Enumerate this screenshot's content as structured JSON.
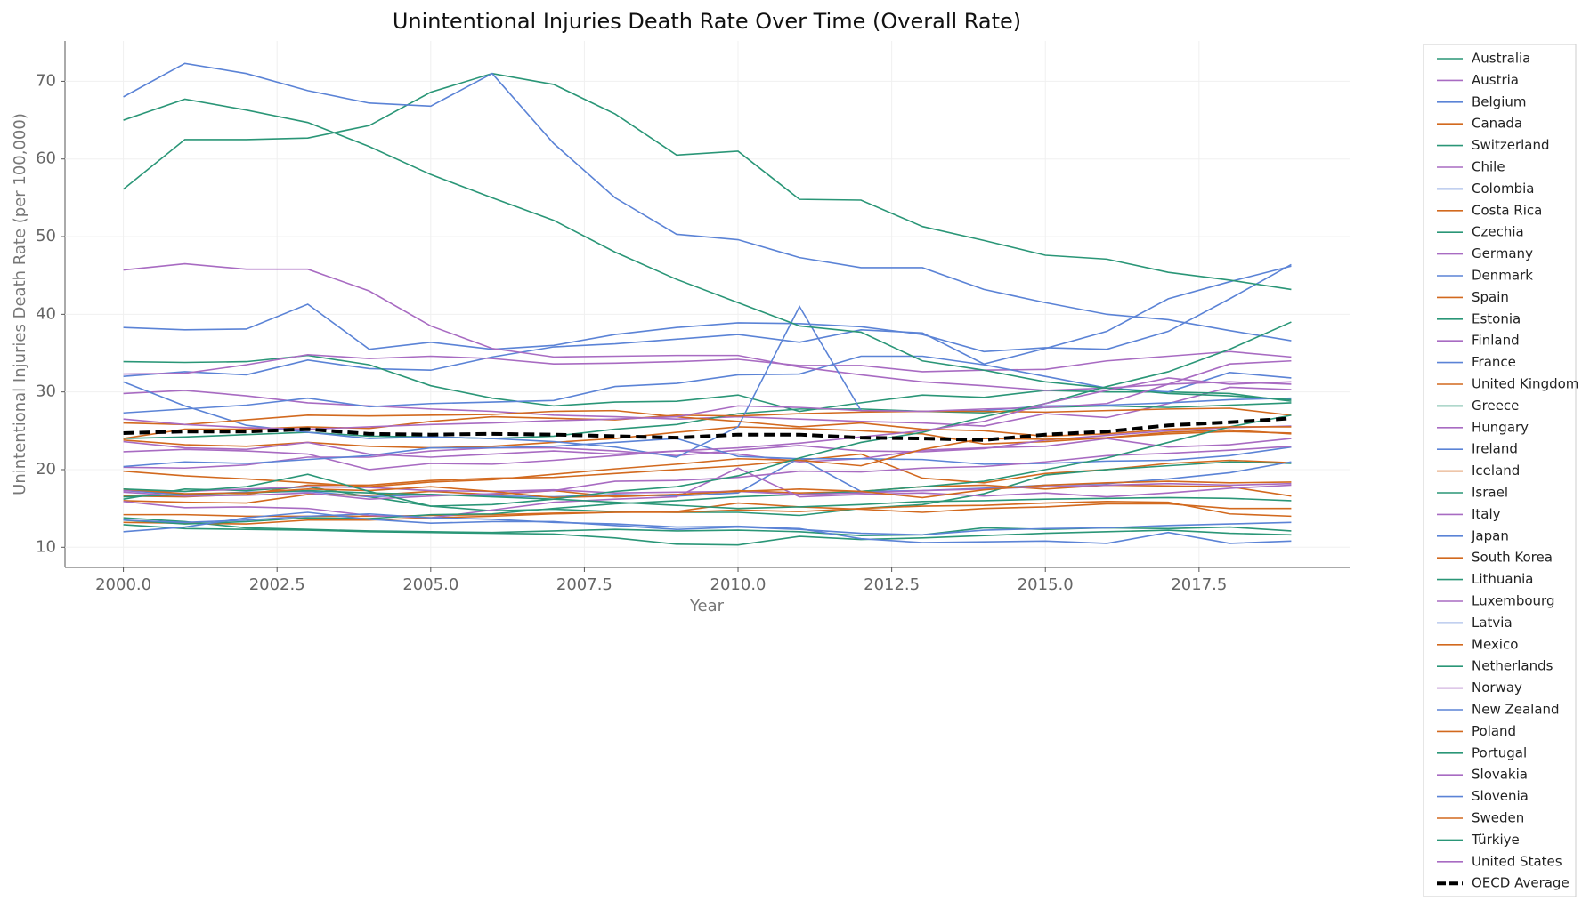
{
  "chart_data": {
    "type": "line",
    "title": "Unintentional Injuries Death Rate Over Time (Overall Rate)",
    "x_label": "Year",
    "y_label": "Unintentional Injuries Death Rate (per 100,000)",
    "x": [
      2000,
      2001,
      2002,
      2003,
      2004,
      2005,
      2006,
      2007,
      2008,
      2009,
      2010,
      2011,
      2012,
      2013,
      2014,
      2015,
      2016,
      2017,
      2018,
      2019
    ],
    "xlim": [
      1999.05,
      2019.95
    ],
    "ylim": [
      7.4,
      75.2
    ],
    "xticks": [
      {
        "value": 2000,
        "label": "2000.0"
      },
      {
        "value": 2002.5,
        "label": "2002.5"
      },
      {
        "value": 2005,
        "label": "2005.0"
      },
      {
        "value": 2007.5,
        "label": "2007.5"
      },
      {
        "value": 2010,
        "label": "2010.0"
      },
      {
        "value": 2012.5,
        "label": "2012.5"
      },
      {
        "value": 2015,
        "label": "2015.0"
      },
      {
        "value": 2017.5,
        "label": "2017.5"
      }
    ],
    "yticks": [
      10,
      20,
      30,
      40,
      50,
      60,
      70
    ],
    "grid": true,
    "legend": "outside-right",
    "series": [
      {
        "name": "Australia",
        "color": "#2a9677",
        "values": [
          13.8,
          13.3,
          12.5,
          12.3,
          12.1,
          12.0,
          11.9,
          12.1,
          12.3,
          12.1,
          12.2,
          12.0,
          11.5,
          11.6,
          12.5,
          12.3,
          12.5,
          12.4,
          12.6,
          12.1
        ]
      },
      {
        "name": "Austria",
        "color": "#a86bc2",
        "values": [
          29.8,
          30.2,
          29.5,
          28.6,
          28.2,
          27.8,
          27.5,
          27.0,
          26.8,
          26.5,
          26.8,
          26.5,
          26.2,
          26.0,
          25.6,
          27.2,
          26.7,
          28.5,
          30.6,
          30.3
        ]
      },
      {
        "name": "Belgium",
        "color": "#5b83d6",
        "values": [
          32.0,
          32.6,
          32.2,
          34.1,
          33.0,
          32.8,
          34.5,
          35.8,
          36.2,
          36.8,
          37.4,
          36.4,
          38.0,
          37.6,
          33.6,
          35.6,
          37.8,
          42.0,
          44.2,
          46.2
        ]
      },
      {
        "name": "Canada",
        "color": "#d2691e",
        "values": [
          16.6,
          16.5,
          16.8,
          18.0,
          18.0,
          18.6,
          18.9,
          19.0,
          19.5,
          20.0,
          20.5,
          21.2,
          22.0,
          18.9,
          18.3,
          19.5,
          20.0,
          20.8,
          21.2,
          20.9
        ]
      },
      {
        "name": "Switzerland",
        "color": "#2a9677",
        "values": [
          16.2,
          17.5,
          17.3,
          17.8,
          16.5,
          15.3,
          14.7,
          14.9,
          14.6,
          14.5,
          14.5,
          14.1,
          15.0,
          15.5,
          16.9,
          19.3,
          20.0,
          20.5,
          21.0,
          20.8
        ]
      },
      {
        "name": "Chile",
        "color": "#a86bc2",
        "values": [
          22.3,
          22.6,
          22.4,
          22.0,
          20.0,
          20.8,
          20.7,
          21.2,
          21.8,
          22.4,
          22.0,
          21.0,
          21.4,
          22.5,
          22.8,
          23.0,
          24.0,
          22.9,
          23.2,
          24.0
        ]
      },
      {
        "name": "Colombia",
        "color": "#5b83d6",
        "values": [
          38.3,
          38.0,
          38.1,
          41.3,
          35.5,
          36.4,
          35.5,
          36.0,
          37.4,
          38.3,
          38.9,
          38.8,
          38.4,
          37.4,
          35.2,
          35.7,
          35.5,
          37.8,
          42.0,
          46.4
        ]
      },
      {
        "name": "Costa Rica",
        "color": "#d2691e",
        "values": [
          23.8,
          23.2,
          23.0,
          23.5,
          23.0,
          22.8,
          23.0,
          23.5,
          24.0,
          24.8,
          25.5,
          25.3,
          25.0,
          24.6,
          23.3,
          23.6,
          24.1,
          24.6,
          24.9,
          24.7
        ]
      },
      {
        "name": "Czechia",
        "color": "#2a9677",
        "values": [
          33.9,
          33.8,
          33.9,
          34.7,
          33.5,
          30.8,
          29.2,
          28.2,
          28.7,
          28.8,
          29.6,
          27.5,
          28.6,
          29.6,
          29.3,
          30.2,
          30.0,
          30.0,
          29.8,
          28.8
        ]
      },
      {
        "name": "Germany",
        "color": "#a86bc2",
        "values": [
          20.3,
          20.2,
          20.6,
          21.6,
          21.6,
          22.4,
          22.8,
          22.8,
          22.4,
          21.8,
          22.5,
          23.1,
          22.4,
          22.3,
          22.7,
          23.8,
          24.4,
          25.0,
          25.4,
          25.6
        ]
      },
      {
        "name": "Denmark",
        "color": "#5b83d6",
        "values": [
          20.4,
          21.0,
          20.8,
          21.3,
          21.8,
          22.8,
          22.8,
          23.0,
          23.5,
          24.0,
          21.7,
          21.4,
          21.4,
          21.3,
          20.7,
          20.8,
          21.1,
          21.2,
          21.8,
          22.9
        ]
      },
      {
        "name": "Spain",
        "color": "#d2691e",
        "values": [
          14.2,
          14.2,
          14.0,
          14.0,
          14.0,
          14.1,
          14.2,
          14.4,
          14.5,
          14.6,
          15.7,
          15.2,
          14.9,
          14.5,
          15.0,
          15.2,
          15.6,
          15.6,
          15.0,
          15.0
        ]
      },
      {
        "name": "Estonia",
        "color": "#2a9677",
        "values": [
          56.1,
          62.5,
          62.5,
          62.7,
          64.3,
          68.6,
          71.0,
          69.6,
          65.8,
          60.5,
          61.0,
          54.8,
          54.7,
          51.3,
          49.5,
          47.6,
          47.1,
          45.4,
          44.4,
          43.2
        ]
      },
      {
        "name": "Finland",
        "color": "#a86bc2",
        "values": [
          32.3,
          32.4,
          33.5,
          34.8,
          34.3,
          34.6,
          34.3,
          33.6,
          33.7,
          33.9,
          34.2,
          33.4,
          33.4,
          32.6,
          32.8,
          32.9,
          34.0,
          34.6,
          35.2,
          34.5
        ]
      },
      {
        "name": "France",
        "color": "#5b83d6",
        "values": [
          27.3,
          27.8,
          28.3,
          29.2,
          28.1,
          28.5,
          28.7,
          28.9,
          30.7,
          31.1,
          32.2,
          32.3,
          34.6,
          34.6,
          33.5,
          32.0,
          30.5,
          30.0,
          32.5,
          31.8
        ]
      },
      {
        "name": "United Kingdom",
        "color": "#d2691e",
        "values": [
          13.2,
          13.1,
          13.0,
          13.5,
          13.5,
          13.8,
          14.0,
          14.3,
          14.5,
          14.5,
          14.8,
          14.6,
          15.0,
          15.3,
          15.4,
          15.7,
          15.9,
          15.8,
          14.3,
          14.0
        ]
      },
      {
        "name": "Greece",
        "color": "#2a9677",
        "values": [
          24.0,
          24.2,
          24.5,
          24.8,
          24.3,
          24.2,
          24.0,
          24.3,
          25.2,
          25.8,
          27.2,
          27.8,
          27.8,
          27.5,
          27.3,
          28.0,
          28.2,
          28.0,
          28.3,
          28.6
        ]
      },
      {
        "name": "Hungary",
        "color": "#a86bc2",
        "values": [
          45.7,
          46.5,
          45.8,
          45.8,
          43.0,
          38.5,
          35.6,
          34.5,
          34.6,
          34.7,
          34.7,
          33.2,
          32.2,
          31.3,
          30.8,
          30.2,
          30.5,
          31.0,
          31.3,
          31.0
        ]
      },
      {
        "name": "Ireland",
        "color": "#5b83d6",
        "values": [
          17.3,
          16.8,
          17.1,
          17.2,
          16.5,
          16.8,
          16.6,
          16.5,
          16.8,
          16.6,
          17.0,
          21.5,
          17.2,
          17.3,
          17.6,
          18.0,
          18.2,
          18.8,
          19.6,
          21.0
        ]
      },
      {
        "name": "Iceland",
        "color": "#d2691e",
        "values": [
          16.0,
          15.8,
          15.7,
          16.8,
          16.7,
          17.2,
          16.8,
          17.3,
          16.5,
          16.8,
          17.3,
          17.0,
          17.2,
          17.8,
          18.0,
          17.5,
          18.0,
          17.9,
          17.8,
          16.6
        ]
      },
      {
        "name": "Israel",
        "color": "#2a9677",
        "values": [
          12.9,
          12.4,
          12.3,
          12.2,
          12.0,
          11.9,
          11.8,
          11.7,
          11.2,
          10.4,
          10.3,
          11.4,
          11.0,
          11.2,
          11.5,
          11.8,
          12.0,
          12.2,
          11.8,
          11.6
        ]
      },
      {
        "name": "Italy",
        "color": "#a86bc2",
        "values": [
          17.1,
          16.6,
          16.7,
          17.0,
          16.2,
          16.6,
          16.9,
          17.3,
          18.5,
          18.6,
          19.0,
          19.8,
          19.7,
          20.2,
          20.4,
          21.0,
          21.8,
          22.1,
          22.5,
          23.0
        ]
      },
      {
        "name": "Japan",
        "color": "#5b83d6",
        "values": [
          31.3,
          28.2,
          25.7,
          24.8,
          24.0,
          24.2,
          24.0,
          23.6,
          22.9,
          21.6,
          25.5,
          41.0,
          27.6,
          27.5,
          27.6,
          28.2,
          28.3,
          28.6,
          29.0,
          29.2
        ]
      },
      {
        "name": "South Korea",
        "color": "#d2691e",
        "values": [
          19.8,
          19.2,
          18.8,
          18.3,
          17.8,
          18.4,
          18.7,
          19.4,
          20.1,
          20.7,
          21.4,
          21.2,
          20.5,
          22.6,
          24.0,
          23.9,
          24.1,
          24.8,
          25.1,
          24.6
        ]
      },
      {
        "name": "Lithuania",
        "color": "#2a9677",
        "values": [
          65.0,
          67.7,
          66.3,
          64.7,
          61.6,
          58.0,
          55.0,
          52.1,
          48.0,
          44.5,
          41.5,
          38.5,
          37.7,
          34.0,
          32.8,
          31.3,
          30.5,
          29.8,
          29.5,
          29.0
        ]
      },
      {
        "name": "Luxembourg",
        "color": "#a86bc2",
        "values": [
          15.9,
          15.1,
          15.2,
          15.0,
          14.1,
          13.8,
          14.8,
          15.8,
          16.2,
          16.5,
          20.2,
          16.5,
          16.8,
          17.0,
          16.6,
          17.0,
          16.5,
          17.0,
          17.6,
          18.0
        ]
      },
      {
        "name": "Latvia",
        "color": "#5b83d6",
        "values": [
          68.0,
          72.3,
          71.0,
          68.8,
          67.2,
          66.8,
          71.0,
          62.0,
          55.0,
          50.3,
          49.6,
          47.3,
          46.0,
          46.0,
          43.2,
          41.5,
          40.0,
          39.3,
          37.9,
          36.6
        ]
      },
      {
        "name": "Mexico",
        "color": "#d2691e",
        "values": [
          24.0,
          25.2,
          25.2,
          25.5,
          25.3,
          26.2,
          26.8,
          26.6,
          26.4,
          27.0,
          26.9,
          27.2,
          27.4,
          27.5,
          27.5,
          27.4,
          27.6,
          27.8,
          27.9,
          27.0
        ]
      },
      {
        "name": "Netherlands",
        "color": "#2a9677",
        "values": [
          13.5,
          13.0,
          13.3,
          13.8,
          13.7,
          14.2,
          14.3,
          15.0,
          15.6,
          16.0,
          16.5,
          16.8,
          17.2,
          17.8,
          18.5,
          20.0,
          21.5,
          23.5,
          25.5,
          27.0
        ]
      },
      {
        "name": "Norway",
        "color": "#a86bc2",
        "values": [
          17.3,
          17.2,
          17.5,
          17.8,
          17.7,
          17.3,
          17.2,
          17.4,
          17.0,
          17.1,
          17.2,
          16.8,
          17.0,
          17.3,
          17.5,
          17.8,
          18.0,
          18.2,
          18.0,
          18.2
        ]
      },
      {
        "name": "New Zealand",
        "color": "#5b83d6",
        "values": [
          13.5,
          13.2,
          13.5,
          14.0,
          14.3,
          13.8,
          13.6,
          13.2,
          13.0,
          12.6,
          12.7,
          12.4,
          11.1,
          10.6,
          10.7,
          10.8,
          10.5,
          11.9,
          10.5,
          10.8
        ]
      },
      {
        "name": "Poland",
        "color": "#d2691e",
        "values": [
          26.0,
          25.8,
          26.4,
          27.0,
          26.9,
          27.0,
          27.1,
          27.5,
          27.6,
          26.8,
          26.2,
          25.5,
          26.0,
          25.2,
          25.0,
          24.3,
          24.6,
          25.2,
          25.5,
          25.5
        ]
      },
      {
        "name": "Portugal",
        "color": "#2a9677",
        "values": [
          16.5,
          16.8,
          17.0,
          17.3,
          17.0,
          16.8,
          16.5,
          16.2,
          15.8,
          15.4,
          15.0,
          15.2,
          15.5,
          15.9,
          16.0,
          16.2,
          16.3,
          16.4,
          16.3,
          16.0
        ]
      },
      {
        "name": "Slovakia",
        "color": "#a86bc2",
        "values": [
          26.5,
          25.8,
          25.4,
          25.2,
          25.5,
          25.8,
          26.0,
          26.3,
          26.5,
          26.8,
          28.2,
          28.0,
          27.6,
          27.5,
          27.8,
          28.0,
          28.5,
          31.0,
          33.6,
          34.0
        ]
      },
      {
        "name": "Slovenia",
        "color": "#5b83d6",
        "values": [
          12.0,
          12.6,
          13.8,
          14.5,
          13.6,
          13.1,
          13.3,
          13.3,
          12.8,
          12.3,
          12.6,
          12.3,
          11.8,
          11.6,
          12.2,
          12.4,
          12.5,
          12.8,
          13.0,
          13.2
        ]
      },
      {
        "name": "Sweden",
        "color": "#d2691e",
        "values": [
          17.5,
          16.9,
          17.0,
          17.5,
          17.3,
          17.8,
          17.2,
          16.4,
          16.6,
          16.8,
          17.2,
          17.5,
          17.2,
          16.4,
          17.4,
          18.0,
          18.3,
          18.5,
          18.3,
          18.4
        ]
      },
      {
        "name": "Türkiye",
        "color": "#2a9677",
        "values": [
          17.5,
          17.2,
          17.8,
          19.4,
          17.2,
          15.3,
          15.5,
          16.2,
          17.2,
          17.8,
          19.2,
          21.5,
          23.5,
          24.8,
          26.8,
          28.5,
          30.7,
          32.6,
          35.5,
          39.0
        ]
      },
      {
        "name": "United States",
        "color": "#a86bc2",
        "values": [
          23.6,
          22.8,
          22.6,
          23.5,
          22.0,
          21.6,
          22.0,
          22.4,
          22.0,
          22.4,
          22.8,
          23.4,
          24.2,
          25.0,
          26.2,
          28.5,
          30.2,
          31.8,
          31.0,
          31.3
        ]
      },
      {
        "name": "OECD Average",
        "color": "#000000",
        "dashed": true,
        "values": [
          24.7,
          24.9,
          24.9,
          25.2,
          24.6,
          24.5,
          24.6,
          24.5,
          24.3,
          24.1,
          24.5,
          24.5,
          24.1,
          24.0,
          23.8,
          24.5,
          24.9,
          25.7,
          26.1,
          26.6
        ]
      }
    ]
  }
}
